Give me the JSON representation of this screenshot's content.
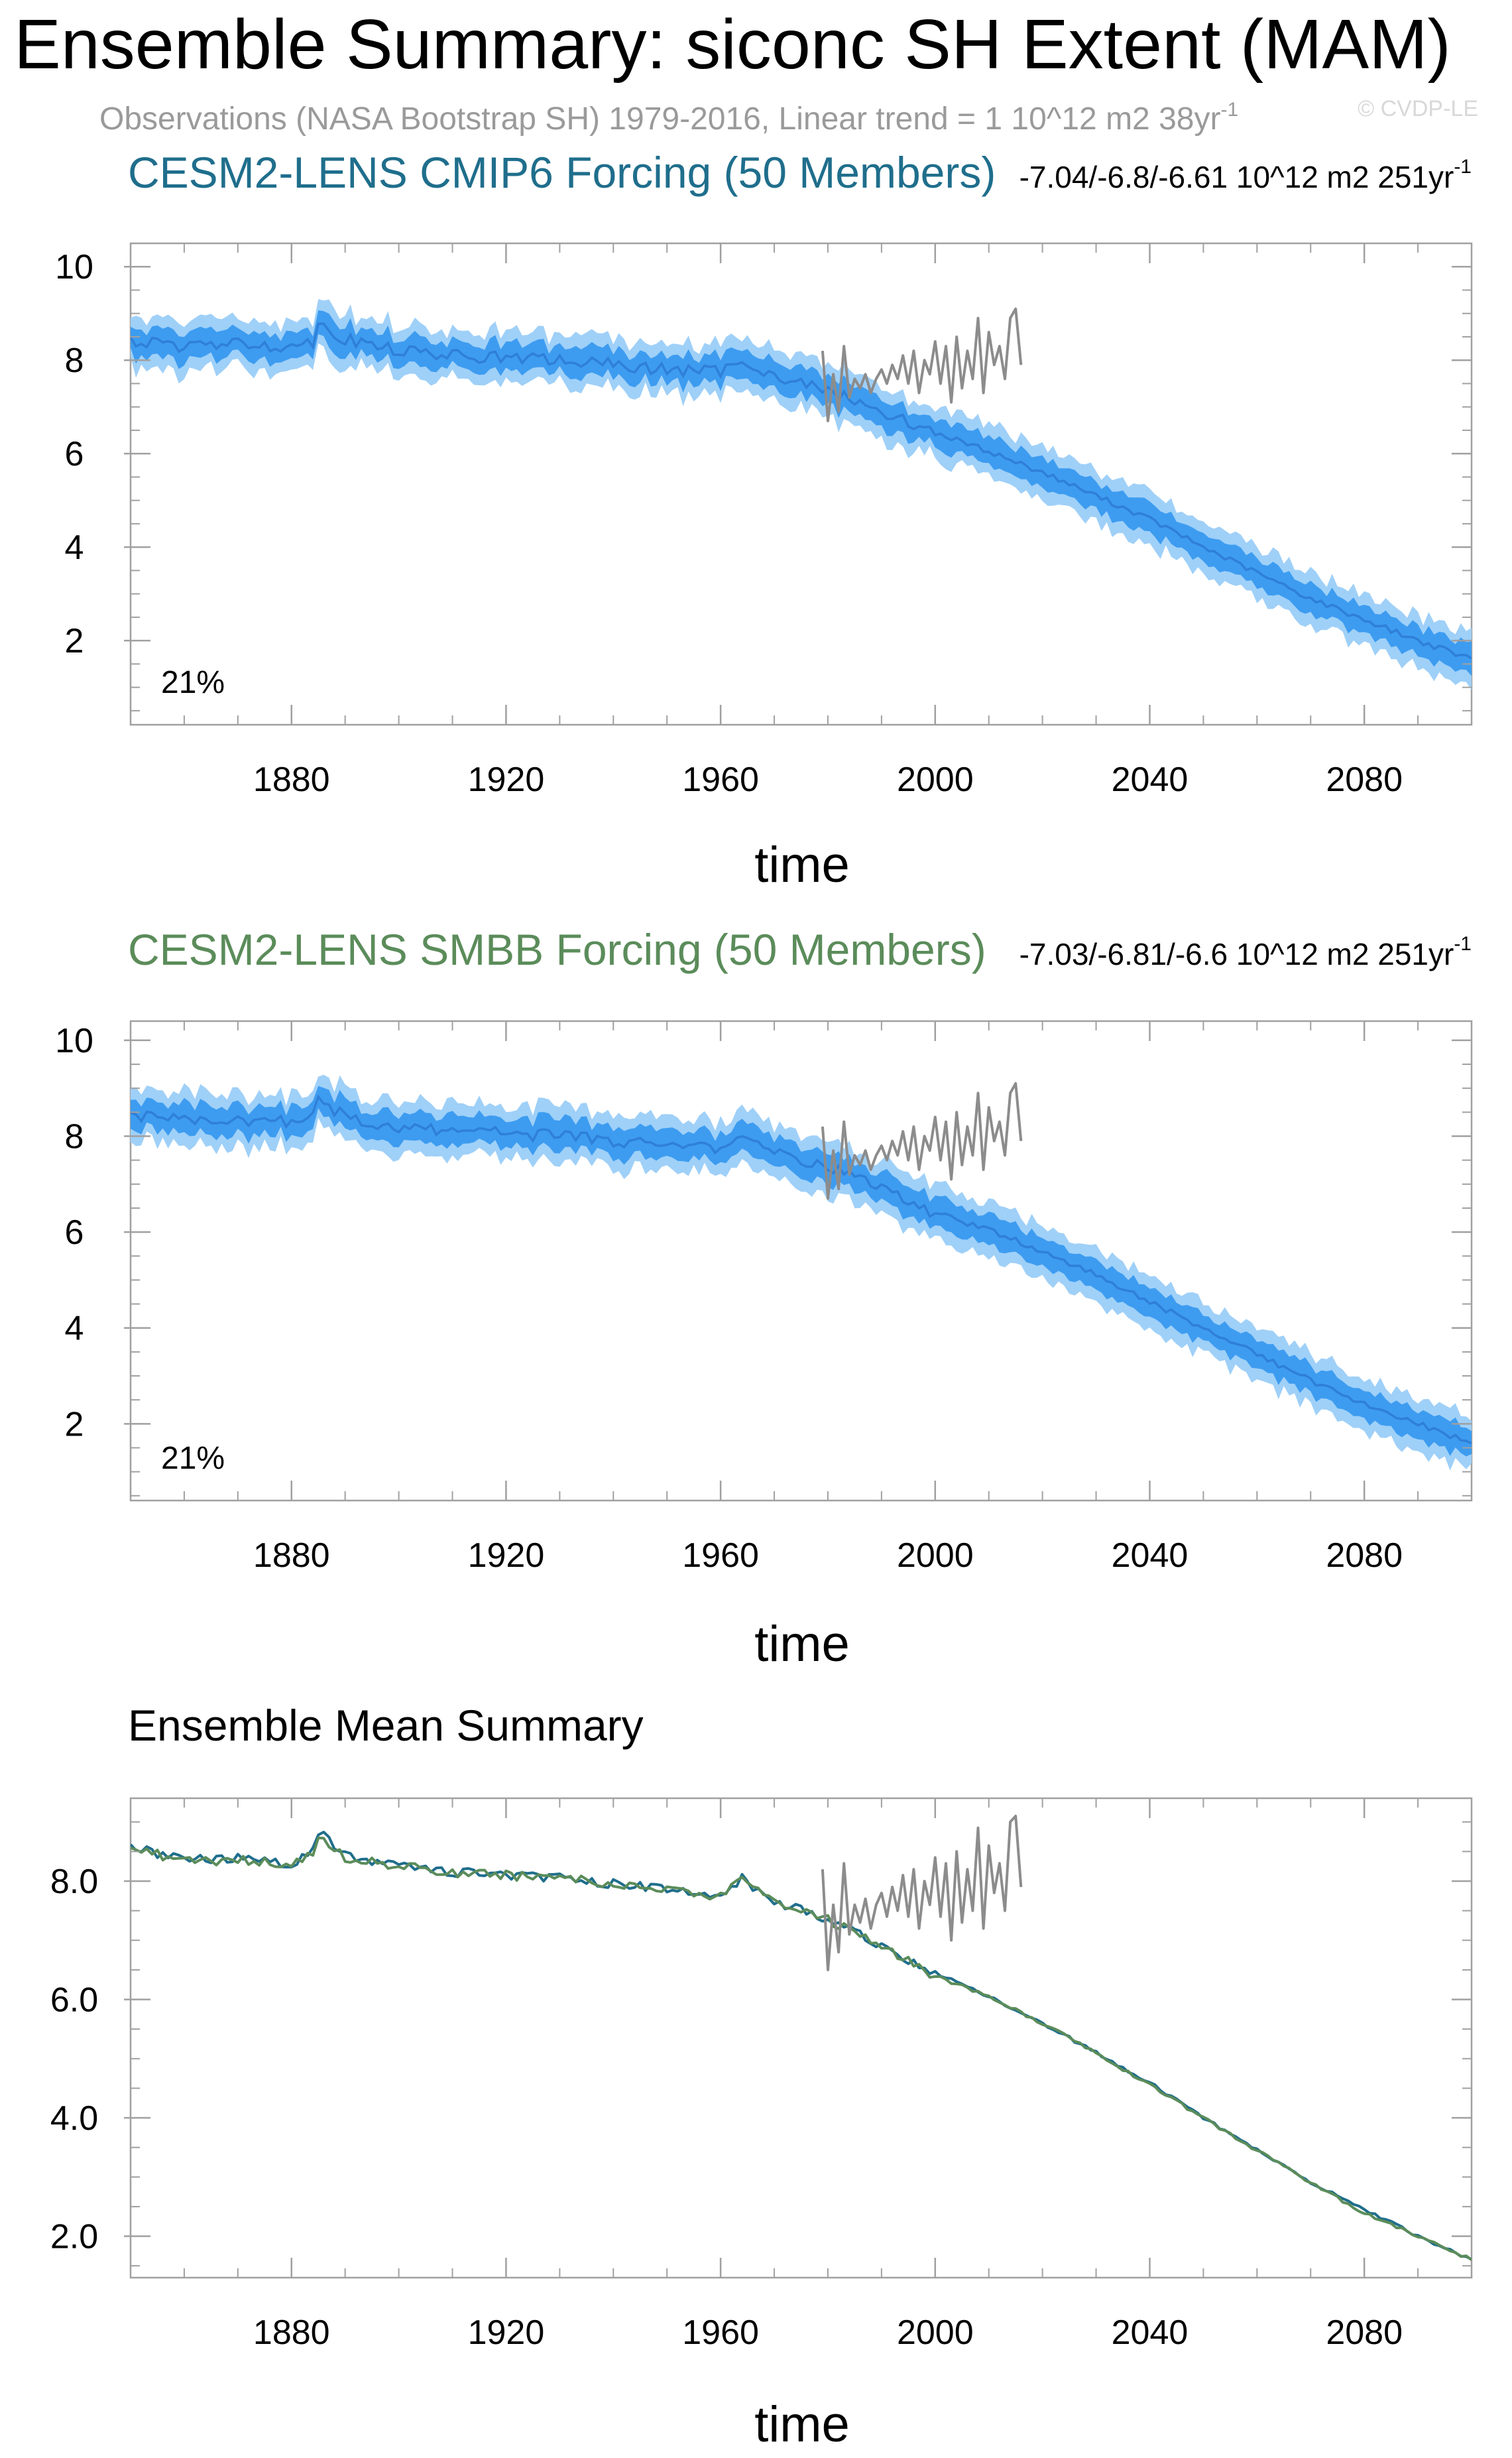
{
  "title": "Ensemble Summary: siconc SH Extent (MAM)",
  "subtitle": "Observations (NASA Bootstrap SH) 1979-2016, Linear trend = 1 10^12 m2 38yr",
  "subtitle_sup": "-1",
  "watermark": "© CVDP-LE",
  "colors": {
    "cmip6": "#1f6e8c",
    "smbb": "#5b8c5a",
    "obs": "#8c8c8c",
    "band_outer": "#9fd0f8",
    "band_inner": "#3d9cf0",
    "band_mean": "#2f7fd8",
    "axis": "#000000"
  },
  "chart_data": [
    {
      "type": "area",
      "title": "CESM2-LENS CMIP6 Forcing (50 Members)",
      "trend_text": "-7.04/-6.8/-6.61 10^12 m2 251yr",
      "trend_sup": "-1",
      "xlabel": "time",
      "ylabel": "",
      "xlim": [
        1850,
        2100
      ],
      "ylim": [
        0.2,
        10.5
      ],
      "xticks": [
        1880,
        1920,
        1960,
        2000,
        2040,
        2080
      ],
      "xtick_labels": [
        "1880",
        "1920",
        "1960",
        "2000",
        "2040",
        "2080"
      ],
      "yticks": [
        2,
        4,
        6,
        8,
        10
      ],
      "ytick_labels": [
        "2",
        "4",
        "6",
        "8",
        "10"
      ],
      "annotation": "21%",
      "ensemble_mean_keypoints": {
        "x": [
          1850,
          1860,
          1870,
          1880,
          1884,
          1885,
          1890,
          1900,
          1910,
          1920,
          1930,
          1940,
          1950,
          1960,
          1964,
          1970,
          1980,
          1990,
          2000,
          2010,
          2020,
          2030,
          2040,
          2050,
          2060,
          2070,
          2080,
          2090,
          2100
        ],
        "y": [
          8.4,
          8.3,
          8.35,
          8.3,
          8.4,
          8.8,
          8.45,
          8.2,
          8.1,
          8.05,
          8.0,
          7.9,
          7.8,
          7.75,
          8.05,
          7.65,
          7.35,
          6.9,
          6.45,
          6.05,
          5.6,
          5.1,
          4.6,
          4.0,
          3.45,
          2.9,
          2.45,
          2.0,
          1.6
        ]
      },
      "band_inner_halfwidth": 0.3,
      "band_outer_halfwidth": 0.55,
      "observations": {
        "x": [
          1979,
          1980,
          1981,
          1982,
          1983,
          1984,
          1985,
          1986,
          1987,
          1988,
          1989,
          1990,
          1991,
          1992,
          1993,
          1994,
          1995,
          1996,
          1997,
          1998,
          1999,
          2000,
          2001,
          2002,
          2003,
          2004,
          2005,
          2006,
          2007,
          2008,
          2009,
          2010,
          2011,
          2012,
          2013,
          2014,
          2015,
          2016
        ],
        "y": [
          8.2,
          6.7,
          7.7,
          6.9,
          8.3,
          7.2,
          7.6,
          7.4,
          7.7,
          7.3,
          7.6,
          7.8,
          7.5,
          7.9,
          7.6,
          8.1,
          7.5,
          8.2,
          7.3,
          8.0,
          7.7,
          8.4,
          7.5,
          8.3,
          7.1,
          8.5,
          7.4,
          8.2,
          7.6,
          8.9,
          7.3,
          8.6,
          7.9,
          8.3,
          7.6,
          8.9,
          9.1,
          7.9
        ]
      }
    },
    {
      "type": "area",
      "title": "CESM2-LENS SMBB Forcing (50 Members)",
      "trend_text": "-7.03/-6.81/-6.6 10^12 m2 251yr",
      "trend_sup": "-1",
      "xlabel": "time",
      "ylabel": "",
      "xlim": [
        1850,
        2100
      ],
      "ylim": [
        0.4,
        10.4
      ],
      "xticks": [
        1880,
        1920,
        1960,
        2000,
        2040,
        2080
      ],
      "xtick_labels": [
        "1880",
        "1920",
        "1960",
        "2000",
        "2040",
        "2080"
      ],
      "yticks": [
        2,
        4,
        6,
        8,
        10
      ],
      "ytick_labels": [
        "2",
        "4",
        "6",
        "8",
        "10"
      ],
      "annotation": "21%",
      "ensemble_mean_keypoints": {
        "x": [
          1850,
          1860,
          1870,
          1880,
          1884,
          1885,
          1890,
          1900,
          1910,
          1920,
          1930,
          1940,
          1950,
          1960,
          1964,
          1970,
          1980,
          1990,
          2000,
          2010,
          2020,
          2030,
          2040,
          2050,
          2060,
          2070,
          2080,
          2090,
          2100
        ],
        "y": [
          8.45,
          8.3,
          8.35,
          8.3,
          8.45,
          8.75,
          8.4,
          8.2,
          8.1,
          8.05,
          8.0,
          7.9,
          7.8,
          7.75,
          8.1,
          7.65,
          7.35,
          6.9,
          6.4,
          6.05,
          5.6,
          5.1,
          4.55,
          4.0,
          3.45,
          2.9,
          2.4,
          2.0,
          1.6
        ]
      },
      "band_inner_halfwidth": 0.3,
      "band_outer_halfwidth": 0.55,
      "observations": {
        "x": [
          1979,
          1980,
          1981,
          1982,
          1983,
          1984,
          1985,
          1986,
          1987,
          1988,
          1989,
          1990,
          1991,
          1992,
          1993,
          1994,
          1995,
          1996,
          1997,
          1998,
          1999,
          2000,
          2001,
          2002,
          2003,
          2004,
          2005,
          2006,
          2007,
          2008,
          2009,
          2010,
          2011,
          2012,
          2013,
          2014,
          2015,
          2016
        ],
        "y": [
          8.2,
          6.7,
          7.7,
          6.9,
          8.3,
          7.2,
          7.6,
          7.4,
          7.7,
          7.3,
          7.6,
          7.8,
          7.5,
          7.9,
          7.6,
          8.1,
          7.5,
          8.2,
          7.3,
          8.0,
          7.7,
          8.4,
          7.5,
          8.3,
          7.1,
          8.5,
          7.4,
          8.2,
          7.6,
          8.9,
          7.3,
          8.6,
          7.9,
          8.3,
          7.6,
          8.9,
          9.1,
          7.9
        ]
      }
    },
    {
      "type": "line",
      "title": "Ensemble Mean Summary",
      "xlabel": "time",
      "ylabel": "",
      "xlim": [
        1850,
        2100
      ],
      "ylim": [
        1.3,
        9.4
      ],
      "xticks": [
        1880,
        1920,
        1960,
        2000,
        2040,
        2080
      ],
      "xtick_labels": [
        "1880",
        "1920",
        "1960",
        "2000",
        "2040",
        "2080"
      ],
      "yticks": [
        2,
        4,
        6,
        8
      ],
      "ytick_labels": [
        "2.0",
        "4.0",
        "6.0",
        "8.0"
      ],
      "series": [
        {
          "name": "CESM2-LENS CMIP6 Forcing",
          "color_key": "cmip6",
          "keypoints": {
            "x": [
              1850,
              1860,
              1870,
              1880,
              1884,
              1885,
              1890,
              1900,
              1910,
              1920,
              1930,
              1940,
              1950,
              1960,
              1964,
              1970,
              1980,
              1990,
              2000,
              2010,
              2020,
              2030,
              2040,
              2050,
              2060,
              2070,
              2080,
              2090,
              2100
            ],
            "y": [
              8.6,
              8.35,
              8.4,
              8.3,
              8.5,
              8.85,
              8.45,
              8.25,
              8.15,
              8.1,
              8.05,
              7.95,
              7.85,
              7.75,
              8.05,
              7.65,
              7.35,
              6.9,
              6.45,
              6.05,
              5.6,
              5.1,
              4.6,
              4.0,
              3.45,
              2.9,
              2.45,
              2.0,
              1.6
            ]
          }
        },
        {
          "name": "CESM2-LENS SMBB Forcing",
          "color_key": "smbb",
          "keypoints": {
            "x": [
              1850,
              1860,
              1870,
              1880,
              1884,
              1885,
              1890,
              1900,
              1910,
              1920,
              1930,
              1940,
              1950,
              1960,
              1964,
              1970,
              1980,
              1990,
              2000,
              2010,
              2020,
              2030,
              2040,
              2050,
              2060,
              2070,
              2080,
              2090,
              2100
            ],
            "y": [
              8.55,
              8.35,
              8.35,
              8.3,
              8.45,
              8.75,
              8.4,
              8.25,
              8.15,
              8.1,
              8.05,
              7.95,
              7.85,
              7.75,
              8.1,
              7.65,
              7.35,
              6.9,
              6.4,
              6.05,
              5.6,
              5.1,
              4.55,
              4.0,
              3.45,
              2.9,
              2.4,
              2.0,
              1.6
            ]
          }
        }
      ],
      "observations": {
        "x": [
          1979,
          1980,
          1981,
          1982,
          1983,
          1984,
          1985,
          1986,
          1987,
          1988,
          1989,
          1990,
          1991,
          1992,
          1993,
          1994,
          1995,
          1996,
          1997,
          1998,
          1999,
          2000,
          2001,
          2002,
          2003,
          2004,
          2005,
          2006,
          2007,
          2008,
          2009,
          2010,
          2011,
          2012,
          2013,
          2014,
          2015,
          2016
        ],
        "y": [
          8.2,
          6.5,
          7.6,
          6.8,
          8.3,
          7.1,
          7.6,
          7.3,
          7.7,
          7.2,
          7.6,
          7.8,
          7.4,
          7.9,
          7.5,
          8.1,
          7.4,
          8.2,
          7.2,
          8.0,
          7.6,
          8.4,
          7.4,
          8.3,
          7.0,
          8.5,
          7.3,
          8.2,
          7.5,
          8.9,
          7.2,
          8.6,
          7.8,
          8.3,
          7.5,
          9.0,
          9.1,
          7.9
        ]
      }
    }
  ]
}
